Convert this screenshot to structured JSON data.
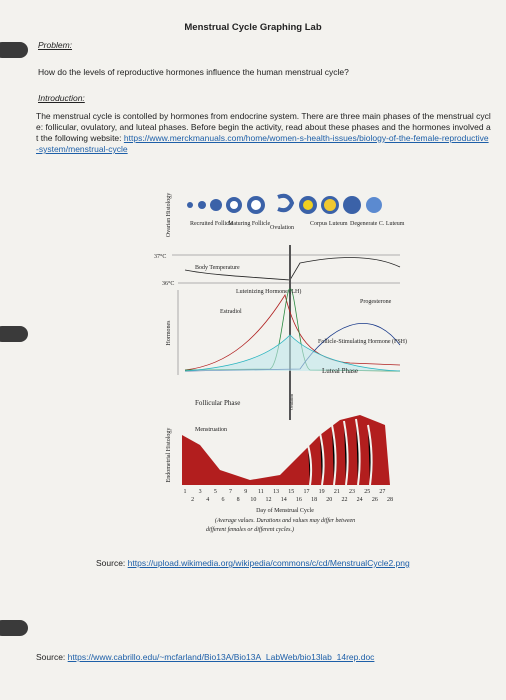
{
  "header": {
    "title": "Menstrual Cycle Graphing Lab"
  },
  "problem": {
    "heading": "Problem:",
    "question": "How do the levels of reproductive hormones influence the human menstrual cycle?"
  },
  "introduction": {
    "heading": "Introduction:",
    "text": "The menstrual cycle is contolled by hormones from endocrine system.  There are three main phases of the menstrual cycle: follicular, ovulatory, and luteal phases.  Before begin the activity, read about these phases and the hormones involved at the following website: ",
    "link": "https://www.merckmanuals.com/home/women-s-health-issues/biology-of-the-female-reproductive-system/menstrual-cycle"
  },
  "figure": {
    "ovarian_label": "Ovarian Histology",
    "stages": [
      "Recruited Follicle",
      "Maturing Follicle",
      "Ovulation",
      "Corpus Luteum",
      "Degenerate C. Luteum"
    ],
    "temp_high": "37°C",
    "temp_low": "36°C",
    "temp_label": "Body Temperature",
    "lh": "Luteinizing Hormone (LH)",
    "estradiol": "Estradiol",
    "progesterone": "Progesterone",
    "fsh": "Follicle-Stimulating Hormone (FSH)",
    "hormones_label": "Hormones",
    "follicular": "Follicular Phase",
    "luteal": "Luteal Phase",
    "ovulation": "Ovulation",
    "menstruation": "Menstruation",
    "endometrial_label": "Endometrial Histology",
    "days_odd": [
      1,
      3,
      5,
      7,
      9,
      11,
      13,
      15,
      17,
      19,
      21,
      23,
      25,
      27
    ],
    "days_even": [
      2,
      4,
      6,
      8,
      10,
      12,
      14,
      16,
      18,
      20,
      22,
      24,
      26,
      28
    ],
    "x_label": "Day of Menstrual Cycle",
    "note": [
      "(Average values. Durations and values may differ between",
      "different females or different cycles.)"
    ]
  },
  "source1": {
    "label": "Source:",
    "link": "https://upload.wikimedia.org/wikipedia/commons/c/cd/MenstrualCycle2.png"
  },
  "source2": {
    "label": "Source:",
    "link": "https://www.cabrillo.edu/~mcfarland/Bio13A/Bio13A_LabWeb/bio13lab_14rep.doc"
  }
}
